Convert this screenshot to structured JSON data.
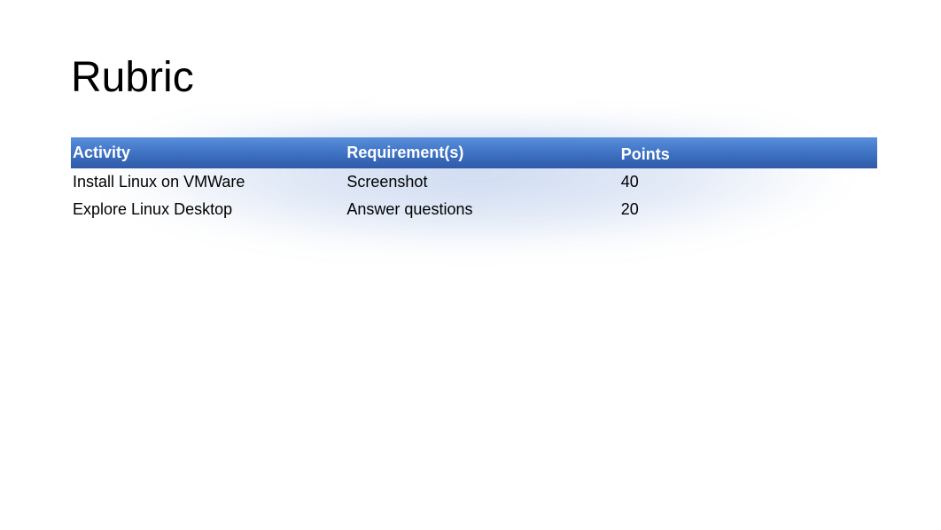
{
  "title": "Rubric",
  "table": {
    "type": "table",
    "header_bg_gradient": [
      "#5a8fdb",
      "#3f73c4",
      "#2f5aa8"
    ],
    "header_text_color": "#ffffff",
    "body_text_color": "#000000",
    "glow_color": "#3c6ec8",
    "background_color": "#ffffff",
    "header_fontsize": 18,
    "header_fontweight": 700,
    "body_fontsize": 18,
    "column_widths_pct": [
      34,
      34,
      32
    ],
    "columns": [
      "Activity",
      "Requirement(s)",
      "Points"
    ],
    "rows": [
      [
        "Install Linux on VMWare",
        "Screenshot",
        "40"
      ],
      [
        "Explore Linux Desktop",
        "Answer questions",
        "20"
      ]
    ]
  }
}
